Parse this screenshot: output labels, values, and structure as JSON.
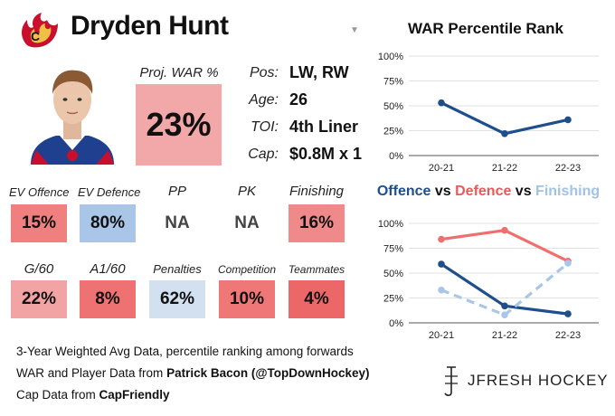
{
  "player": {
    "name": "Dryden Hunt",
    "proj_war_label": "Proj. WAR %",
    "proj_war_value": "23%",
    "info": [
      {
        "key": "Pos:",
        "value": "LW, RW"
      },
      {
        "key": "Age:",
        "value": "26"
      },
      {
        "key": "TOI:",
        "value": "4th Liner"
      },
      {
        "key": "Cap:",
        "value": "$0.8M x 1"
      }
    ]
  },
  "metrics_row1": [
    {
      "label": "EV Offence",
      "value": "15%",
      "color": "#f08080"
    },
    {
      "label": "EV Defence",
      "value": "80%",
      "color": "#a9c6e8"
    },
    {
      "label": "PP",
      "value": "NA",
      "color": "#ffffff"
    },
    {
      "label": "PK",
      "value": "NA",
      "color": "#ffffff"
    },
    {
      "label": "Finishing",
      "value": "16%",
      "color": "#f08a8a"
    }
  ],
  "metrics_row2": [
    {
      "label": "G/60",
      "value": "22%",
      "color": "#f2a4a4"
    },
    {
      "label": "A1/60",
      "value": "8%",
      "color": "#ee7272"
    },
    {
      "label": "Penalties",
      "value": "62%",
      "color": "#d3e0ef"
    },
    {
      "label": "Competition",
      "value": "10%",
      "color": "#ef7777"
    },
    {
      "label": "Teammates",
      "value": "4%",
      "color": "#ec6868"
    }
  ],
  "footer": {
    "line1": "3-Year Weighted Avg Data, percentile ranking among forwards",
    "line2_prefix": "WAR and Player Data from ",
    "line2_bold": "Patrick Bacon (@TopDownHockey)",
    "line3_prefix": "Cap Data from ",
    "line3_bold": "CapFriendly",
    "brand": "JFRESH HOCKEY"
  },
  "chart_data": [
    {
      "type": "line",
      "title": "WAR Percentile Rank",
      "categories": [
        "20-21",
        "21-22",
        "22-23"
      ],
      "yticks": [
        "0%",
        "25%",
        "50%",
        "75%",
        "100%"
      ],
      "ylim": [
        0,
        100
      ],
      "grid": true,
      "series": [
        {
          "values": [
            53,
            22,
            36
          ],
          "color": "#1f4e8c",
          "dashed": false
        }
      ]
    },
    {
      "type": "line",
      "title_parts": [
        {
          "text": "Offence",
          "color": "#1f4e8c"
        },
        {
          "text": " vs ",
          "color": "#111111"
        },
        {
          "text": "Defence",
          "color": "#e8595a"
        },
        {
          "text": " vs ",
          "color": "#111111"
        },
        {
          "text": "Finishing",
          "color": "#9fc2e6"
        }
      ],
      "categories": [
        "20-21",
        "21-22",
        "22-23"
      ],
      "yticks": [
        "0%",
        "25%",
        "50%",
        "75%",
        "100%"
      ],
      "ylim": [
        0,
        100
      ],
      "grid": true,
      "series": [
        {
          "values": [
            84,
            93,
            62
          ],
          "color": "#ef6f6f",
          "dashed": false
        },
        {
          "values": [
            59,
            17,
            9
          ],
          "color": "#1f4e8c",
          "dashed": false
        },
        {
          "values": [
            33,
            8,
            60
          ],
          "color": "#a9c6e8",
          "dashed": true
        }
      ]
    }
  ]
}
